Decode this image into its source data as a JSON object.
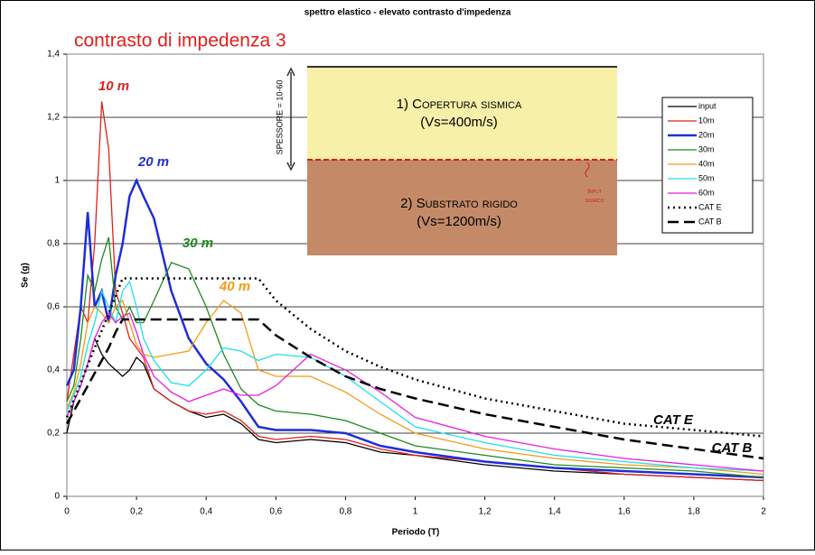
{
  "chart_data": {
    "type": "line",
    "title": "spettro elastico - elevato contrasto d'impedenza",
    "subtitle": "contrasto di impedenza  3",
    "x_label": "Periodo (T)",
    "y_label": "Se (g)",
    "xlim": [
      0,
      2
    ],
    "ylim": [
      0,
      1.4
    ],
    "xticks": [
      0,
      {
        "value": 0.2,
        "label": "0,2"
      },
      {
        "value": 0.4,
        "label": "0,4"
      },
      {
        "value": 0.6,
        "label": "0,6"
      },
      {
        "value": 0.8,
        "label": "0,8"
      },
      1,
      {
        "value": 1.2,
        "label": "1,2"
      },
      {
        "value": 1.4,
        "label": "1,4"
      },
      {
        "value": 1.6,
        "label": "1,6"
      },
      {
        "value": 1.8,
        "label": "1,8"
      },
      2
    ],
    "yticks": [
      0,
      {
        "value": 0.2,
        "label": "0,2"
      },
      {
        "value": 0.4,
        "label": "0,4"
      },
      {
        "value": 0.6,
        "label": "0,6"
      },
      {
        "value": 0.8,
        "label": "0,8"
      },
      1,
      {
        "value": 1.2,
        "label": "1,2"
      },
      {
        "value": 1.4,
        "label": "1,4"
      }
    ],
    "grid": true,
    "legend": "upper right",
    "x": [
      0,
      0.02,
      0.04,
      0.06,
      0.08,
      0.1,
      0.12,
      0.14,
      0.16,
      0.18,
      0.2,
      0.22,
      0.25,
      0.3,
      0.35,
      0.4,
      0.45,
      0.5,
      0.55,
      0.6,
      0.7,
      0.8,
      0.9,
      1.0,
      1.2,
      1.4,
      1.6,
      1.8,
      2.0
    ],
    "series": [
      {
        "name": "input",
        "color": "#000000",
        "style": "solid",
        "values": [
          0.2,
          0.3,
          0.35,
          0.42,
          0.5,
          0.45,
          0.42,
          0.4,
          0.38,
          0.4,
          0.44,
          0.42,
          0.34,
          0.3,
          0.27,
          0.25,
          0.26,
          0.23,
          0.18,
          0.17,
          0.18,
          0.17,
          0.14,
          0.13,
          0.1,
          0.08,
          0.07,
          0.06,
          0.05
        ]
      },
      {
        "name": "10m",
        "color": "#e0201c",
        "style": "solid",
        "values": [
          0.3,
          0.45,
          0.6,
          0.55,
          0.8,
          1.25,
          1.1,
          0.65,
          0.58,
          0.5,
          0.47,
          0.44,
          0.34,
          0.3,
          0.27,
          0.26,
          0.27,
          0.24,
          0.19,
          0.18,
          0.19,
          0.18,
          0.15,
          0.13,
          0.11,
          0.09,
          0.07,
          0.06,
          0.05
        ]
      },
      {
        "name": "20m",
        "color": "#1f2ed6",
        "style": "bold",
        "values": [
          0.35,
          0.4,
          0.6,
          0.9,
          0.6,
          0.65,
          0.55,
          0.7,
          0.8,
          0.95,
          1.0,
          0.95,
          0.88,
          0.65,
          0.5,
          0.42,
          0.37,
          0.3,
          0.22,
          0.21,
          0.21,
          0.2,
          0.16,
          0.14,
          0.11,
          0.09,
          0.08,
          0.07,
          0.06
        ]
      },
      {
        "name": "30m",
        "color": "#1e8a1e",
        "style": "solid",
        "values": [
          0.3,
          0.35,
          0.5,
          0.7,
          0.65,
          0.75,
          0.82,
          0.6,
          0.56,
          0.6,
          0.55,
          0.55,
          0.62,
          0.74,
          0.72,
          0.6,
          0.45,
          0.34,
          0.29,
          0.27,
          0.26,
          0.24,
          0.2,
          0.16,
          0.13,
          0.1,
          0.09,
          0.08,
          0.06
        ]
      },
      {
        "name": "40m",
        "color": "#f29a1a",
        "style": "solid",
        "values": [
          0.28,
          0.33,
          0.42,
          0.55,
          0.6,
          0.58,
          0.55,
          0.6,
          0.62,
          0.55,
          0.48,
          0.45,
          0.44,
          0.45,
          0.46,
          0.55,
          0.62,
          0.58,
          0.4,
          0.38,
          0.38,
          0.33,
          0.26,
          0.2,
          0.15,
          0.12,
          0.1,
          0.09,
          0.07
        ]
      },
      {
        "name": "50m",
        "color": "#1ee0e8",
        "style": "solid",
        "values": [
          0.27,
          0.32,
          0.38,
          0.48,
          0.55,
          0.65,
          0.6,
          0.55,
          0.65,
          0.68,
          0.6,
          0.5,
          0.43,
          0.36,
          0.35,
          0.4,
          0.47,
          0.46,
          0.43,
          0.45,
          0.44,
          0.38,
          0.3,
          0.22,
          0.17,
          0.13,
          0.11,
          0.09,
          0.08
        ]
      },
      {
        "name": "60m",
        "color": "#e81ee0",
        "style": "solid",
        "values": [
          0.25,
          0.3,
          0.35,
          0.42,
          0.5,
          0.55,
          0.58,
          0.55,
          0.57,
          0.58,
          0.52,
          0.45,
          0.38,
          0.33,
          0.3,
          0.32,
          0.34,
          0.32,
          0.32,
          0.35,
          0.45,
          0.4,
          0.33,
          0.25,
          0.19,
          0.15,
          0.12,
          0.1,
          0.08
        ]
      },
      {
        "name": "CAT E",
        "color": "#000000",
        "style": "dotted",
        "values": [
          0.25,
          0.305,
          0.36,
          0.415,
          0.47,
          0.525,
          0.58,
          0.635,
          0.69,
          0.69,
          0.69,
          0.69,
          0.69,
          0.69,
          0.69,
          0.69,
          0.69,
          0.69,
          0.69,
          0.62,
          0.53,
          0.46,
          0.41,
          0.37,
          0.31,
          0.27,
          0.23,
          0.21,
          0.19
        ]
      },
      {
        "name": "CAT B",
        "color": "#000000",
        "style": "dashed",
        "values": [
          0.23,
          0.27,
          0.31,
          0.35,
          0.39,
          0.43,
          0.47,
          0.52,
          0.56,
          0.56,
          0.56,
          0.56,
          0.56,
          0.56,
          0.56,
          0.56,
          0.56,
          0.56,
          0.56,
          0.51,
          0.44,
          0.38,
          0.34,
          0.31,
          0.26,
          0.22,
          0.18,
          0.15,
          0.12
        ]
      }
    ],
    "annotations": [
      {
        "text": "10 m",
        "color": "#e0201c"
      },
      {
        "text": "20 m",
        "color": "#1f2ed6"
      },
      {
        "text": "30 m",
        "color": "#1e8a1e"
      },
      {
        "text": "40 m",
        "color": "#f29a1a"
      },
      {
        "text": "CAT  E",
        "color": "#000000"
      },
      {
        "text": "CAT  B",
        "color": "#000000"
      }
    ],
    "inset": {
      "layer1_name": "1) Copertura sismica",
      "layer1_vs": "(Vs=400m/s)",
      "layer2_name": "2) Substrato rigido",
      "layer2_vs": "(Vs=1200m/s)",
      "thickness": "SPESSORE = 10-60",
      "input_line1": "Input",
      "input_line2": "sismico"
    }
  }
}
